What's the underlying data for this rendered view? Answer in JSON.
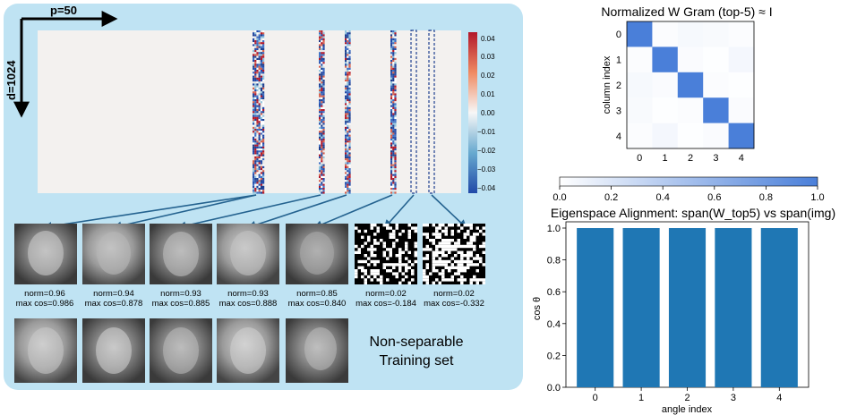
{
  "left_panel": {
    "p_label": "p=50",
    "d_label": "d=1024",
    "colorbar_ticks": [
      "0.04",
      "0.03",
      "0.02",
      "0.01",
      "0.00",
      "−0.01",
      "−0.02",
      "−0.03",
      "−0.04"
    ],
    "faces": [
      {
        "norm": "norm=0.96",
        "cos": "max cos=0.986"
      },
      {
        "norm": "norm=0.94",
        "cos": "max cos=0.878"
      },
      {
        "norm": "norm=0.93",
        "cos": "max cos=0.885"
      },
      {
        "norm": "norm=0.93",
        "cos": "max cos=0.888"
      },
      {
        "norm": "norm=0.85",
        "cos": "max cos=0.840"
      },
      {
        "norm": "norm=0.02",
        "cos": "max cos=-0.184"
      },
      {
        "norm": "norm=0.02",
        "cos": "max cos=-0.332"
      }
    ],
    "training_label_line1": "Non-separable",
    "training_label_line2": "Training set"
  },
  "chart_data": [
    {
      "type": "heatmap",
      "title": "Normalized W Gram (top-5)  ≈  I",
      "xlabel": "",
      "ylabel": "column index",
      "x_ticks": [
        "0",
        "1",
        "2",
        "3",
        "4"
      ],
      "y_ticks": [
        "0",
        "1",
        "2",
        "3",
        "4"
      ],
      "matrix": [
        [
          1.0,
          0.02,
          0.05,
          0.04,
          0.02
        ],
        [
          0.02,
          1.0,
          0.03,
          0.01,
          0.06
        ],
        [
          0.05,
          0.03,
          1.0,
          0.02,
          0.01
        ],
        [
          0.04,
          0.01,
          0.02,
          1.0,
          0.03
        ],
        [
          0.02,
          0.06,
          0.01,
          0.03,
          1.0
        ]
      ],
      "colorbar": {
        "min": 0.0,
        "max": 1.0,
        "ticks": [
          "0.0",
          "0.2",
          "0.4",
          "0.6",
          "0.8",
          "1.0"
        ],
        "color": "#4a7fd9"
      }
    },
    {
      "type": "bar",
      "title": "Eigenspace Alignment: span(W_top5) vs span(img)",
      "xlabel": "angle index",
      "ylabel": "cos θ",
      "categories": [
        "0",
        "1",
        "2",
        "3",
        "4"
      ],
      "values": [
        1.0,
        1.0,
        1.0,
        1.0,
        1.0
      ],
      "ylim": [
        0.0,
        1.0
      ],
      "y_ticks": [
        "0.0",
        "0.2",
        "0.4",
        "0.6",
        "0.8",
        "1.0"
      ],
      "bar_color": "#1f77b4"
    }
  ]
}
